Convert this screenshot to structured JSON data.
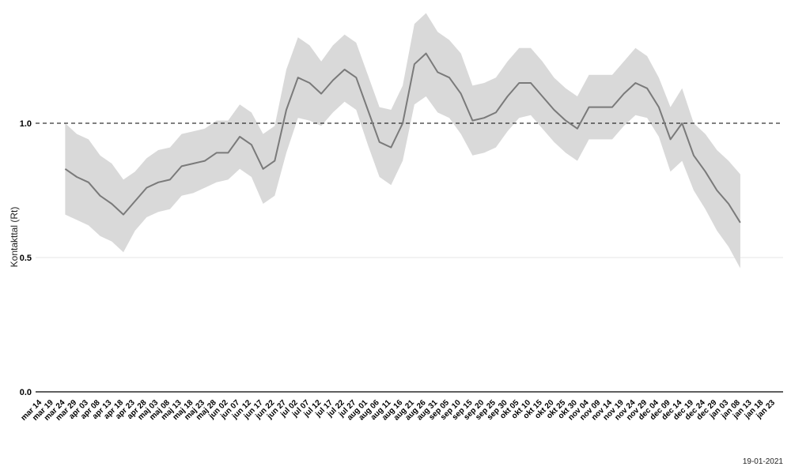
{
  "chart_data": {
    "type": "line",
    "title": "",
    "xlabel": "",
    "ylabel": "Kontakttal (Rt)",
    "footnote": "19-01-2021",
    "reference_line": {
      "value": 1.0,
      "style": "dashed"
    },
    "ylim": [
      0,
      1.4
    ],
    "y_ticks": [
      "0.0",
      "0.5",
      "1.0"
    ],
    "y_tick_values": [
      0.0,
      0.5,
      1.0
    ],
    "grid": "horizontal",
    "legend": "none",
    "colors": {
      "line": "#7a7a7a",
      "band": "#d9d9d9",
      "axis": "#000000",
      "grid": "#e6e6e6"
    },
    "x_tick_labels": [
      "mar 14",
      "mar 19",
      "mar 24",
      "mar 29",
      "apr 03",
      "apr 08",
      "apr 13",
      "apr 18",
      "apr 23",
      "apr 28",
      "maj 03",
      "maj 08",
      "maj 13",
      "maj 18",
      "maj 23",
      "maj 28",
      "jun 02",
      "jun 07",
      "jun 12",
      "jun 17",
      "jun 22",
      "jun 27",
      "jul 02",
      "jul 07",
      "jul 12",
      "jul 17",
      "jul 22",
      "jul 27",
      "aug 01",
      "aug 06",
      "aug 11",
      "aug 16",
      "aug 21",
      "aug 26",
      "aug 31",
      "sep 05",
      "sep 10",
      "sep 15",
      "sep 20",
      "sep 25",
      "sep 30",
      "okt 05",
      "okt 10",
      "okt 15",
      "okt 20",
      "okt 25",
      "okt 30",
      "nov 04",
      "nov 09",
      "nov 14",
      "nov 19",
      "nov 24",
      "nov 29",
      "dec 04",
      "dec 09",
      "dec 14",
      "dec 19",
      "dec 24",
      "dec 29",
      "jan 03",
      "jan 08",
      "jan 13",
      "jan 18",
      "jan 23"
    ],
    "series": [
      {
        "x": [
          "mar 24",
          "mar 29",
          "apr 03",
          "apr 08",
          "apr 13",
          "apr 18",
          "apr 23",
          "apr 28",
          "maj 03",
          "maj 08",
          "maj 13",
          "maj 18",
          "maj 23",
          "maj 28",
          "jun 02",
          "jun 07",
          "jun 12",
          "jun 17",
          "jun 22",
          "jun 27",
          "jul 02",
          "jul 07",
          "jul 12",
          "jul 17",
          "jul 22",
          "jul 27",
          "aug 01",
          "aug 06",
          "aug 11",
          "aug 16",
          "aug 21",
          "aug 26",
          "aug 31",
          "sep 05",
          "sep 10",
          "sep 15",
          "sep 20",
          "sep 25",
          "sep 30",
          "okt 05",
          "okt 10",
          "okt 15",
          "okt 20",
          "okt 25",
          "okt 30",
          "nov 04",
          "nov 09",
          "nov 14",
          "nov 19",
          "nov 24",
          "nov 29",
          "dec 04",
          "dec 09",
          "dec 14",
          "dec 19",
          "dec 24",
          "dec 29",
          "jan 03",
          "jan 08"
        ],
        "values": [
          0.83,
          0.8,
          0.78,
          0.73,
          0.7,
          0.66,
          0.71,
          0.76,
          0.78,
          0.79,
          0.84,
          0.85,
          0.86,
          0.89,
          0.89,
          0.95,
          0.92,
          0.83,
          0.86,
          1.05,
          1.17,
          1.15,
          1.11,
          1.16,
          1.2,
          1.17,
          1.05,
          0.93,
          0.91,
          1.0,
          1.22,
          1.26,
          1.19,
          1.17,
          1.11,
          1.01,
          1.02,
          1.04,
          1.1,
          1.15,
          1.15,
          1.1,
          1.05,
          1.01,
          0.98,
          1.06,
          1.06,
          1.06,
          1.11,
          1.15,
          1.13,
          1.06,
          0.94,
          1.0,
          0.88,
          0.82,
          0.75,
          0.7,
          0.63
        ],
        "lower": [
          0.66,
          0.64,
          0.62,
          0.58,
          0.56,
          0.52,
          0.6,
          0.65,
          0.67,
          0.68,
          0.73,
          0.74,
          0.76,
          0.78,
          0.79,
          0.83,
          0.8,
          0.7,
          0.73,
          0.89,
          1.02,
          1.01,
          0.99,
          1.04,
          1.08,
          1.05,
          0.92,
          0.8,
          0.77,
          0.86,
          1.07,
          1.1,
          1.04,
          1.02,
          0.96,
          0.88,
          0.89,
          0.91,
          0.97,
          1.02,
          1.03,
          0.98,
          0.93,
          0.89,
          0.86,
          0.94,
          0.94,
          0.94,
          0.99,
          1.03,
          1.02,
          0.95,
          0.82,
          0.86,
          0.75,
          0.68,
          0.6,
          0.54,
          0.46
        ],
        "upper": [
          1.0,
          0.96,
          0.94,
          0.88,
          0.85,
          0.79,
          0.82,
          0.87,
          0.9,
          0.91,
          0.96,
          0.97,
          0.98,
          1.01,
          1.01,
          1.07,
          1.04,
          0.96,
          0.99,
          1.2,
          1.32,
          1.29,
          1.23,
          1.29,
          1.33,
          1.3,
          1.18,
          1.06,
          1.05,
          1.14,
          1.37,
          1.41,
          1.34,
          1.31,
          1.26,
          1.14,
          1.15,
          1.17,
          1.23,
          1.28,
          1.28,
          1.23,
          1.17,
          1.13,
          1.1,
          1.18,
          1.18,
          1.18,
          1.23,
          1.28,
          1.25,
          1.17,
          1.06,
          1.13,
          1.0,
          0.96,
          0.9,
          0.86,
          0.81
        ]
      }
    ]
  }
}
